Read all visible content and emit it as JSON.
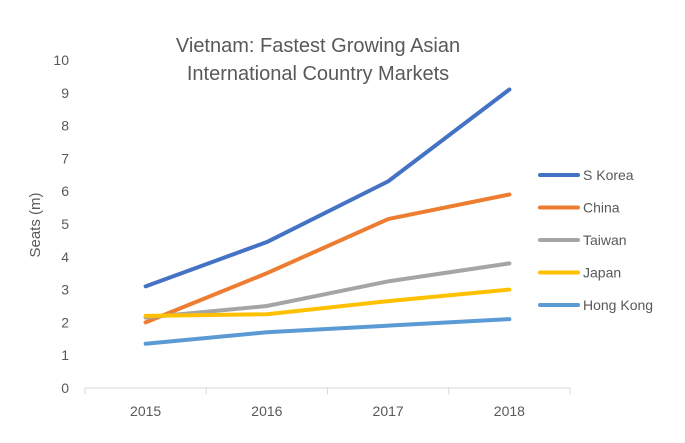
{
  "chart_data": {
    "type": "line",
    "title": "Vietnam: Fastest Growing Asian International Country Markets",
    "title_lines": [
      "Vietnam: Fastest Growing Asian",
      "International Country Markets"
    ],
    "xlabel": "",
    "ylabel": "Seats (m)",
    "categories": [
      "2015",
      "2016",
      "2017",
      "2018"
    ],
    "ylim": [
      0,
      10
    ],
    "yticks": [
      "0",
      "1",
      "2",
      "3",
      "4",
      "5",
      "6",
      "7",
      "8",
      "9",
      "10"
    ],
    "grid": false,
    "legend_position": "right",
    "series": [
      {
        "name": "S Korea",
        "color": "#4472C4",
        "values": [
          3.1,
          4.45,
          6.3,
          9.1
        ]
      },
      {
        "name": "China",
        "color": "#ED7D31",
        "values": [
          2.0,
          3.5,
          5.15,
          5.9
        ]
      },
      {
        "name": "Taiwan",
        "color": "#A5A5A5",
        "values": [
          2.15,
          2.5,
          3.25,
          3.8
        ]
      },
      {
        "name": "Japan",
        "color": "#FFC000",
        "values": [
          2.2,
          2.25,
          2.65,
          3.0
        ]
      },
      {
        "name": "Hong Kong",
        "color": "#5B9BD5",
        "values": [
          1.35,
          1.7,
          1.9,
          2.1
        ]
      }
    ]
  }
}
